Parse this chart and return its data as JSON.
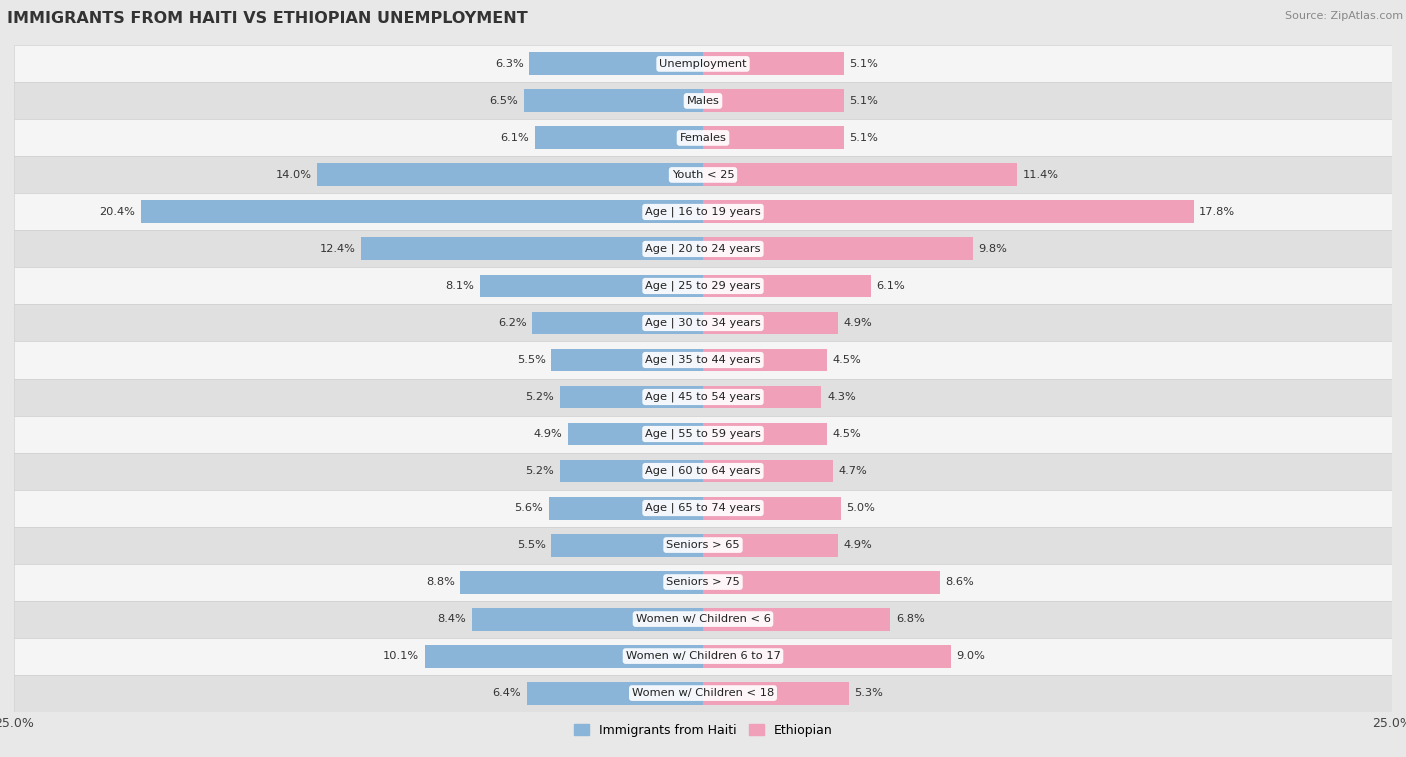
{
  "title": "IMMIGRANTS FROM HAITI VS ETHIOPIAN UNEMPLOYMENT",
  "source": "Source: ZipAtlas.com",
  "categories": [
    "Unemployment",
    "Males",
    "Females",
    "Youth < 25",
    "Age | 16 to 19 years",
    "Age | 20 to 24 years",
    "Age | 25 to 29 years",
    "Age | 30 to 34 years",
    "Age | 35 to 44 years",
    "Age | 45 to 54 years",
    "Age | 55 to 59 years",
    "Age | 60 to 64 years",
    "Age | 65 to 74 years",
    "Seniors > 65",
    "Seniors > 75",
    "Women w/ Children < 6",
    "Women w/ Children 6 to 17",
    "Women w/ Children < 18"
  ],
  "haiti_values": [
    6.3,
    6.5,
    6.1,
    14.0,
    20.4,
    12.4,
    8.1,
    6.2,
    5.5,
    5.2,
    4.9,
    5.2,
    5.6,
    5.5,
    8.8,
    8.4,
    10.1,
    6.4
  ],
  "ethiopian_values": [
    5.1,
    5.1,
    5.1,
    11.4,
    17.8,
    9.8,
    6.1,
    4.9,
    4.5,
    4.3,
    4.5,
    4.7,
    5.0,
    4.9,
    8.6,
    6.8,
    9.0,
    5.3
  ],
  "haiti_color": "#8ab4d8",
  "ethiopian_color": "#f0a0b8",
  "axis_limit": 25.0,
  "background_color": "#e8e8e8",
  "row_color_odd": "#f5f5f5",
  "row_color_even": "#e0e0e0",
  "label_color": "#555555",
  "title_color": "#333333",
  "legend_haiti": "Immigrants from Haiti",
  "legend_ethiopian": "Ethiopian",
  "bar_height": 0.62
}
